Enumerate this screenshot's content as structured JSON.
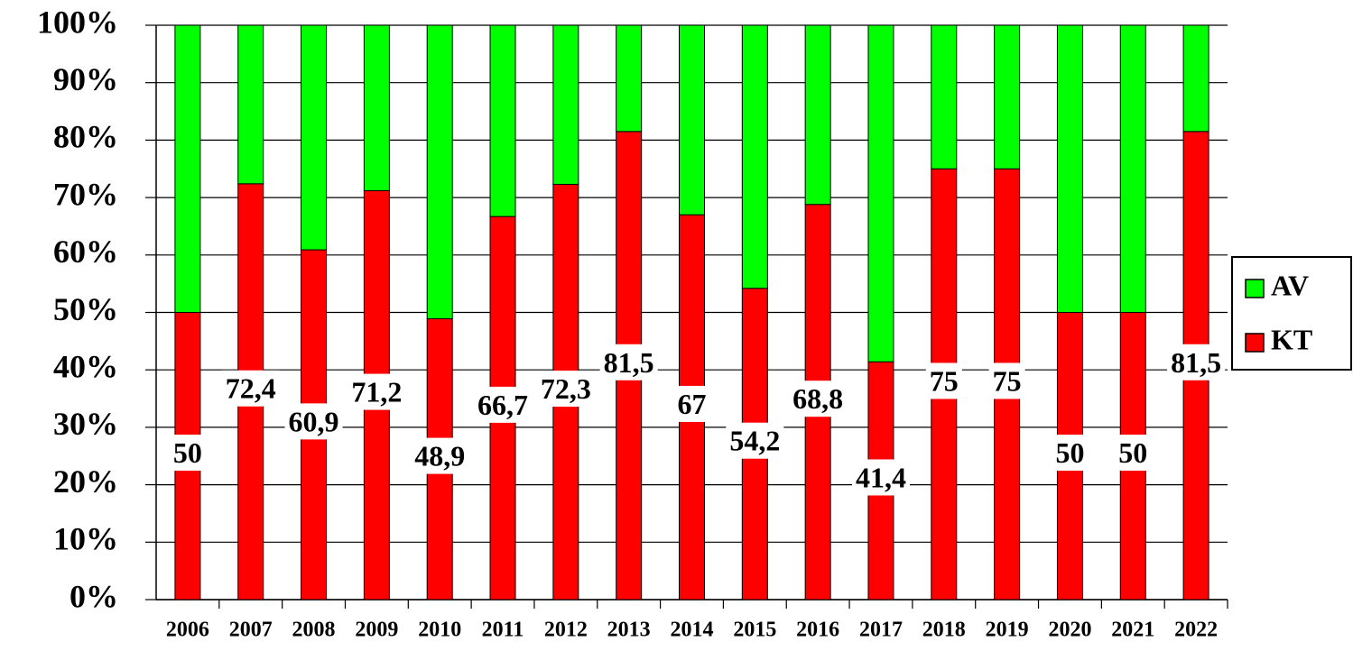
{
  "chart_data": {
    "type": "stacked-bar",
    "categories": [
      "2006",
      "2007",
      "2008",
      "2009",
      "2010",
      "2011",
      "2012",
      "2013",
      "2014",
      "2015",
      "2016",
      "2017",
      "2018",
      "2019",
      "2020",
      "2021",
      "2022"
    ],
    "series": [
      {
        "name": "KT",
        "color": "#ff0000",
        "values": [
          50,
          72.4,
          60.9,
          71.2,
          48.9,
          66.7,
          72.3,
          81.5,
          67,
          54.2,
          68.8,
          41.4,
          75,
          75,
          50,
          50,
          81.5
        ],
        "value_labels": [
          "50",
          "72,4",
          "60,9",
          "71,2",
          "48,9",
          "66,7",
          "72,3",
          "81,5",
          "67",
          "54,2",
          "68,8",
          "41,4",
          "75",
          "75",
          "50",
          "50",
          "81,5"
        ]
      },
      {
        "name": "AV",
        "color": "#00ff00",
        "values": [
          50,
          27.6,
          39.1,
          28.8,
          51.1,
          33.3,
          27.7,
          18.5,
          33,
          45.8,
          31.2,
          58.6,
          25,
          25,
          50,
          50,
          18.5
        ]
      }
    ],
    "ylim": [
      0,
      100
    ],
    "yticks": [
      {
        "value": 0,
        "label": "0%"
      },
      {
        "value": 10,
        "label": "10%"
      },
      {
        "value": 20,
        "label": "20%"
      },
      {
        "value": 30,
        "label": "30%"
      },
      {
        "value": 40,
        "label": "40%"
      },
      {
        "value": 50,
        "label": "50%"
      },
      {
        "value": 60,
        "label": "60%"
      },
      {
        "value": 70,
        "label": "70%"
      },
      {
        "value": 80,
        "label": "80%"
      },
      {
        "value": 90,
        "label": "90%"
      },
      {
        "value": 100,
        "label": "100%"
      }
    ],
    "grid": true
  }
}
